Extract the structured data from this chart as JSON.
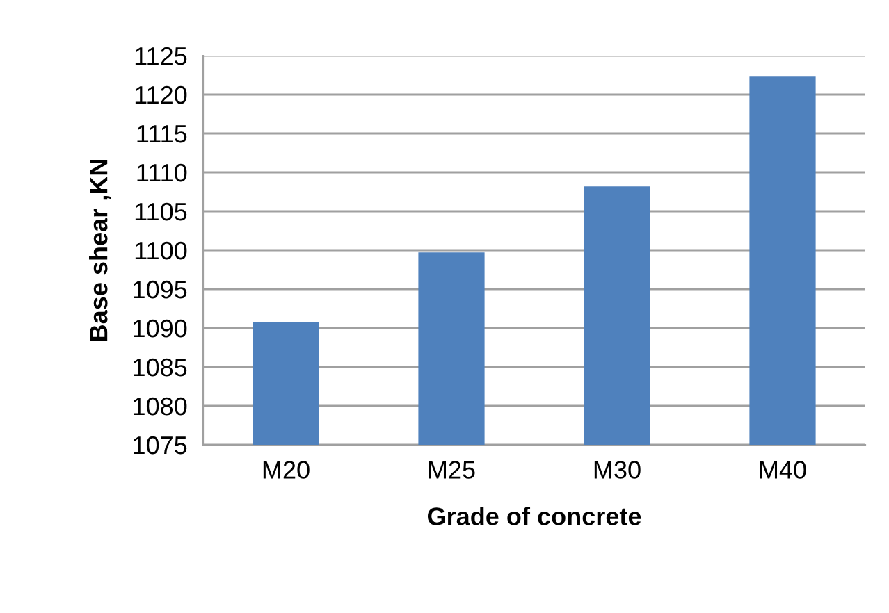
{
  "chart_data": {
    "type": "bar",
    "xlabel": "Grade of concrete",
    "ylabel": "Base shear ,KN",
    "categories": [
      "M20",
      "M25",
      "M30",
      "M40"
    ],
    "values": [
      1090.8,
      1099.7,
      1108.2,
      1122.3
    ],
    "color": "#4f81bd",
    "ylim": [
      1075,
      1125
    ],
    "yticks": [
      1075,
      1080,
      1085,
      1090,
      1095,
      1100,
      1105,
      1110,
      1115,
      1120,
      1125
    ],
    "grid": "y",
    "legend": false
  }
}
